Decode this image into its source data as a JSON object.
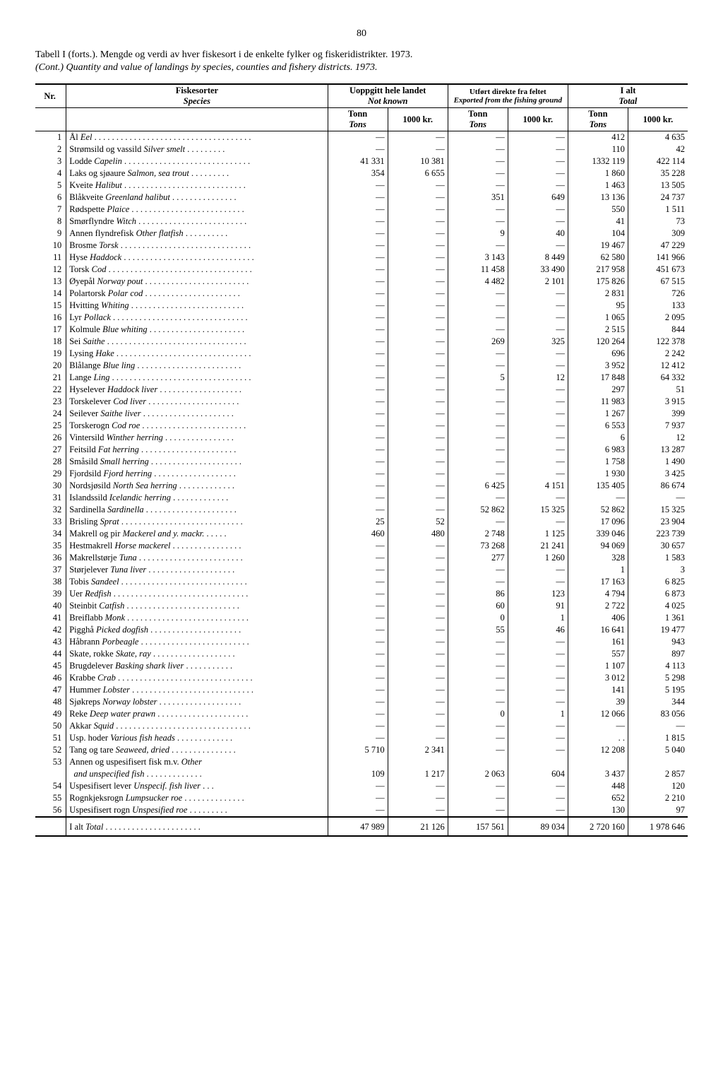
{
  "page_number": "80",
  "title_main": "Tabell I (forts.). Mengde og verdi av hver fiskesort i de enkelte fylker og fiskeridistrikter. 1973.",
  "title_sub": "(Cont.) Quantity and value of landings by species, counties and fishery districts. 1973.",
  "header": {
    "nr": "Nr.",
    "species_no": "Fiskesorter",
    "species_en": "Species",
    "col2_no": "Uoppgitt hele landet",
    "col2_en": "Not known",
    "col3_no": "Utført direkte fra feltet",
    "col3_en": "Exported from the fishing ground",
    "col4_no": "I alt",
    "col4_en": "Total",
    "tonn": "Tonn",
    "tons": "Tons",
    "kr": "1000 kr."
  },
  "rows": [
    {
      "n": "1",
      "no": "Ål ",
      "en": "Eel",
      "a": "—",
      "b": "—",
      "c": "—",
      "d": "—",
      "e": "412",
      "f": "4 635"
    },
    {
      "n": "2",
      "no": "Strømsild og vassild ",
      "en": "Silver smelt",
      "a": "—",
      "b": "—",
      "c": "—",
      "d": "—",
      "e": "110",
      "f": "42"
    },
    {
      "n": "3",
      "no": "Lodde ",
      "en": "Capelin",
      "a": "41 331",
      "b": "10 381",
      "c": "—",
      "d": "—",
      "e": "1332 119",
      "f": "422 114"
    },
    {
      "n": "4",
      "no": "Laks og sjøaure ",
      "en": "Salmon, sea trout",
      "a": "354",
      "b": "6 655",
      "c": "—",
      "d": "—",
      "e": "1 860",
      "f": "35 228"
    },
    {
      "n": "5",
      "no": "Kveite ",
      "en": "Halibut",
      "a": "—",
      "b": "—",
      "c": "—",
      "d": "—",
      "e": "1 463",
      "f": "13 505"
    },
    {
      "n": "6",
      "no": "Blåkveite ",
      "en": "Greenland halibut",
      "a": "—",
      "b": "—",
      "c": "351",
      "d": "649",
      "e": "13 136",
      "f": "24 737"
    },
    {
      "n": "7",
      "no": "Rødspette ",
      "en": "Plaice",
      "a": "—",
      "b": "—",
      "c": "—",
      "d": "—",
      "e": "550",
      "f": "1 511"
    },
    {
      "n": "8",
      "no": "Smørflyndre ",
      "en": "Witch",
      "a": "—",
      "b": "—",
      "c": "—",
      "d": "—",
      "e": "41",
      "f": "73"
    },
    {
      "n": "9",
      "no": "Annen flyndrefisk ",
      "en": "Other flatfish",
      "a": "—",
      "b": "—",
      "c": "9",
      "d": "40",
      "e": "104",
      "f": "309"
    },
    {
      "n": "10",
      "no": "Brosme ",
      "en": "Torsk",
      "a": "—",
      "b": "—",
      "c": "—",
      "d": "—",
      "e": "19 467",
      "f": "47 229"
    },
    {
      "n": "11",
      "no": "Hyse ",
      "en": "Haddock",
      "a": "—",
      "b": "—",
      "c": "3 143",
      "d": "8 449",
      "e": "62 580",
      "f": "141 966"
    },
    {
      "n": "12",
      "no": "Torsk ",
      "en": "Cod",
      "a": "—",
      "b": "—",
      "c": "11 458",
      "d": "33 490",
      "e": "217 958",
      "f": "451 673"
    },
    {
      "n": "13",
      "no": "Øyepål ",
      "en": "Norway pout",
      "a": "—",
      "b": "—",
      "c": "4 482",
      "d": "2 101",
      "e": "175 826",
      "f": "67 515"
    },
    {
      "n": "14",
      "no": "Polartorsk ",
      "en": "Polar cod",
      "a": "—",
      "b": "—",
      "c": "—",
      "d": "—",
      "e": "2 831",
      "f": "726"
    },
    {
      "n": "15",
      "no": "Hvitting ",
      "en": "Whiting",
      "a": "—",
      "b": "—",
      "c": "—",
      "d": "—",
      "e": "95",
      "f": "133"
    },
    {
      "n": "16",
      "no": "Lyr ",
      "en": "Pollack",
      "a": "—",
      "b": "—",
      "c": "—",
      "d": "—",
      "e": "1 065",
      "f": "2 095"
    },
    {
      "n": "17",
      "no": "Kolmule ",
      "en": "Blue whiting",
      "a": "—",
      "b": "—",
      "c": "—",
      "d": "—",
      "e": "2 515",
      "f": "844"
    },
    {
      "n": "18",
      "no": "Sei ",
      "en": "Saithe",
      "a": "—",
      "b": "—",
      "c": "269",
      "d": "325",
      "e": "120 264",
      "f": "122 378"
    },
    {
      "n": "19",
      "no": "Lysing ",
      "en": "Hake",
      "a": "—",
      "b": "—",
      "c": "—",
      "d": "—",
      "e": "696",
      "f": "2 242"
    },
    {
      "n": "20",
      "no": "Blålange ",
      "en": "Blue ling",
      "a": "—",
      "b": "—",
      "c": "—",
      "d": "—",
      "e": "3 952",
      "f": "12 412"
    },
    {
      "n": "21",
      "no": "Lange ",
      "en": "Ling",
      "a": "—",
      "b": "—",
      "c": "5",
      "d": "12",
      "e": "17 848",
      "f": "64 332"
    },
    {
      "n": "22",
      "no": "Hyselever ",
      "en": "Haddock liver",
      "a": "—",
      "b": "—",
      "c": "—",
      "d": "—",
      "e": "297",
      "f": "51"
    },
    {
      "n": "23",
      "no": "Torskelever ",
      "en": "Cod liver",
      "a": "—",
      "b": "—",
      "c": "—",
      "d": "—",
      "e": "11 983",
      "f": "3 915"
    },
    {
      "n": "24",
      "no": "Seilever ",
      "en": "Saithe liver",
      "a": "—",
      "b": "—",
      "c": "—",
      "d": "—",
      "e": "1 267",
      "f": "399"
    },
    {
      "n": "25",
      "no": "Torskerogn ",
      "en": "Cod roe",
      "a": "—",
      "b": "—",
      "c": "—",
      "d": "—",
      "e": "6 553",
      "f": "7 937"
    },
    {
      "n": "26",
      "no": "Vintersild ",
      "en": "Winther herring",
      "a": "—",
      "b": "—",
      "c": "—",
      "d": "—",
      "e": "6",
      "f": "12"
    },
    {
      "n": "27",
      "no": "Feitsild ",
      "en": "Fat herring",
      "a": "—",
      "b": "—",
      "c": "—",
      "d": "—",
      "e": "6 983",
      "f": "13 287"
    },
    {
      "n": "28",
      "no": "Småsild ",
      "en": "Small herring",
      "a": "—",
      "b": "—",
      "c": "—",
      "d": "—",
      "e": "1 758",
      "f": "1 490"
    },
    {
      "n": "29",
      "no": "Fjordsild ",
      "en": "Fjord herring",
      "a": "—",
      "b": "—",
      "c": "—",
      "d": "—",
      "e": "1 930",
      "f": "3 425"
    },
    {
      "n": "30",
      "no": "Nordsjøsild ",
      "en": "North Sea herring",
      "a": "—",
      "b": "—",
      "c": "6 425",
      "d": "4 151",
      "e": "135 405",
      "f": "86 674"
    },
    {
      "n": "31",
      "no": "Islandssild ",
      "en": "Icelandic herring",
      "a": "—",
      "b": "—",
      "c": "—",
      "d": "—",
      "e": "—",
      "f": "—"
    },
    {
      "n": "32",
      "no": "Sardinella ",
      "en": "Sardinella",
      "a": "—",
      "b": "—",
      "c": "52 862",
      "d": "15 325",
      "e": "52 862",
      "f": "15 325"
    },
    {
      "n": "33",
      "no": "Brisling ",
      "en": "Sprat",
      "a": "25",
      "b": "52",
      "c": "—",
      "d": "—",
      "e": "17 096",
      "f": "23 904"
    },
    {
      "n": "34",
      "no": "Makrell og pir ",
      "en": "Mackerel and y. mackr.",
      "a": "460",
      "b": "480",
      "c": "2 748",
      "d": "1 125",
      "e": "339 046",
      "f": "223 739"
    },
    {
      "n": "35",
      "no": "Hestmakrell ",
      "en": "Horse mackerel",
      "a": "—",
      "b": "—",
      "c": "73 268",
      "d": "21 241",
      "e": "94 069",
      "f": "30 657"
    },
    {
      "n": "36",
      "no": "Makrellstørje ",
      "en": "Tuna",
      "a": "—",
      "b": "—",
      "c": "277",
      "d": "1 260",
      "e": "328",
      "f": "1 583"
    },
    {
      "n": "37",
      "no": "Størjelever ",
      "en": "Tuna liver",
      "a": "—",
      "b": "—",
      "c": "—",
      "d": "—",
      "e": "1",
      "f": "3"
    },
    {
      "n": "38",
      "no": "Tobis ",
      "en": "Sandeel",
      "a": "—",
      "b": "—",
      "c": "—",
      "d": "—",
      "e": "17 163",
      "f": "6 825"
    },
    {
      "n": "39",
      "no": "Uer ",
      "en": "Redfish",
      "a": "—",
      "b": "—",
      "c": "86",
      "d": "123",
      "e": "4 794",
      "f": "6 873"
    },
    {
      "n": "40",
      "no": "Steinbit ",
      "en": "Catfish",
      "a": "—",
      "b": "—",
      "c": "60",
      "d": "91",
      "e": "2 722",
      "f": "4 025"
    },
    {
      "n": "41",
      "no": "Breiflabb ",
      "en": "Monk",
      "a": "—",
      "b": "—",
      "c": "0",
      "d": "1",
      "e": "406",
      "f": "1 361"
    },
    {
      "n": "42",
      "no": "Pigghå ",
      "en": "Picked dogfish",
      "a": "—",
      "b": "—",
      "c": "55",
      "d": "46",
      "e": "16 641",
      "f": "19 477"
    },
    {
      "n": "43",
      "no": "Håbrann ",
      "en": "Porbeagle",
      "a": "—",
      "b": "—",
      "c": "—",
      "d": "—",
      "e": "161",
      "f": "943"
    },
    {
      "n": "44",
      "no": "Skate, rokke ",
      "en": "Skate, ray",
      "a": "—",
      "b": "—",
      "c": "—",
      "d": "—",
      "e": "557",
      "f": "897"
    },
    {
      "n": "45",
      "no": "Brugdelever ",
      "en": "Basking shark liver",
      "a": "—",
      "b": "—",
      "c": "—",
      "d": "—",
      "e": "1 107",
      "f": "4 113"
    },
    {
      "n": "46",
      "no": "Krabbe ",
      "en": "Crab",
      "a": "—",
      "b": "—",
      "c": "—",
      "d": "—",
      "e": "3 012",
      "f": "5 298"
    },
    {
      "n": "47",
      "no": "Hummer ",
      "en": "Lobster",
      "a": "—",
      "b": "—",
      "c": "—",
      "d": "—",
      "e": "141",
      "f": "5 195"
    },
    {
      "n": "48",
      "no": "Sjøkreps ",
      "en": "Norway lobster",
      "a": "—",
      "b": "—",
      "c": "—",
      "d": "—",
      "e": "39",
      "f": "344"
    },
    {
      "n": "49",
      "no": "Reke ",
      "en": "Deep water prawn",
      "a": "—",
      "b": "—",
      "c": "0",
      "d": "1",
      "e": "12 066",
      "f": "83 056"
    },
    {
      "n": "50",
      "no": "Akkar ",
      "en": "Squid",
      "a": "—",
      "b": "—",
      "c": "—",
      "d": "—",
      "e": "—",
      "f": "—"
    },
    {
      "n": "51",
      "no": "Usp. hoder ",
      "en": "Various fish heads",
      "a": "—",
      "b": "—",
      "c": "—",
      "d": "—",
      "e": ". .",
      "f": "1 815"
    },
    {
      "n": "52",
      "no": "Tang og tare ",
      "en": "Seaweed, dried",
      "a": "5 710",
      "b": "2 341",
      "c": "—",
      "d": "—",
      "e": "12 208",
      "f": "5 040"
    },
    {
      "n": "53",
      "no": "Annen og uspesifisert fisk m.v. ",
      "en": "Other and unspecified fish",
      "a": "109",
      "b": "1 217",
      "c": "2 063",
      "d": "604",
      "e": "3 437",
      "f": "2 857",
      "wrap": true
    },
    {
      "n": "54",
      "no": "Uspesifisert lever ",
      "en": "Unspecif. fish liver",
      "a": "—",
      "b": "—",
      "c": "—",
      "d": "—",
      "e": "448",
      "f": "120"
    },
    {
      "n": "55",
      "no": "Rognkjeksrogn ",
      "en": "Lumpsucker roe",
      "a": "—",
      "b": "—",
      "c": "—",
      "d": "—",
      "e": "652",
      "f": "2 210"
    },
    {
      "n": "56",
      "no": "Uspesifisert rogn ",
      "en": "Unspesified roe",
      "a": "—",
      "b": "—",
      "c": "—",
      "d": "—",
      "e": "130",
      "f": "97"
    }
  ],
  "total": {
    "label_no": "I alt ",
    "label_en": "Total",
    "a": "47 989",
    "b": "21 126",
    "c": "157 561",
    "d": "89 034",
    "e": "2 720 160",
    "f": "1 978 646"
  }
}
